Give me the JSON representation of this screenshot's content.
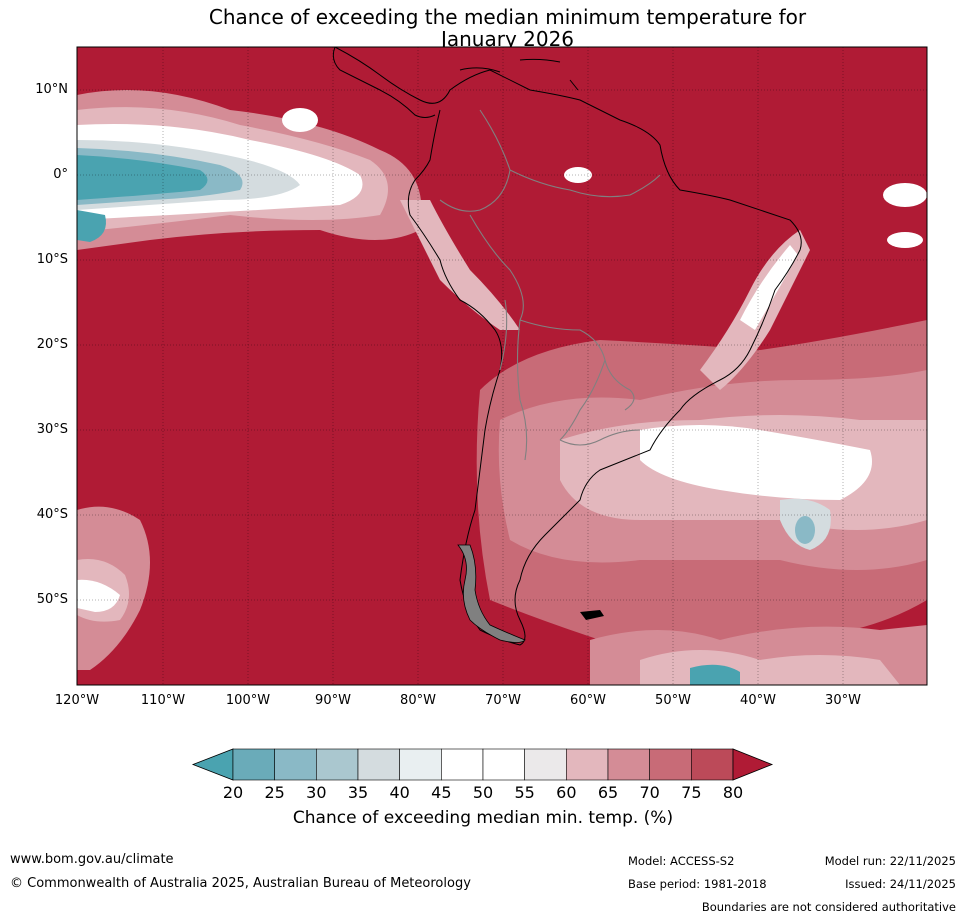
{
  "title": {
    "line1": "Chance of exceeding the median minimum temperature for",
    "line2": "January 2026"
  },
  "map": {
    "region": "South America",
    "lat_labels": [
      "10°N",
      "0°",
      "10°S",
      "20°S",
      "30°S",
      "40°S",
      "50°S"
    ],
    "lon_labels": [
      "120°W",
      "110°W",
      "100°W",
      "90°W",
      "80°W",
      "70°W",
      "60°W",
      "50°W",
      "40°W",
      "30°W"
    ],
    "background_color": "#b01b35",
    "land_outline_color": "#000000",
    "border_color": "#808080"
  },
  "colorbar": {
    "ticks": [
      "20",
      "25",
      "30",
      "35",
      "40",
      "45",
      "50",
      "55",
      "60",
      "65",
      "70",
      "75",
      "80"
    ],
    "colors": [
      "#4aa3b0",
      "#6aabb9",
      "#8ab9c6",
      "#aac7cf",
      "#d4dcdf",
      "#e9eff1",
      "#ffffff",
      "#ffffff",
      "#ebe9ea",
      "#e3b7bd",
      "#d48c96",
      "#c86b77",
      "#bc4a59",
      "#b01b35"
    ],
    "label": "Chance of exceeding median min. temp. (%)"
  },
  "footer": {
    "website": "www.bom.gov.au/climate",
    "copyright": "© Commonwealth of Australia 2025, Australian Bureau of Meteorology",
    "model": "Model: ACCESS-S2",
    "base_period": "Base period: 1981-2018",
    "model_run": "Model run: 22/11/2025",
    "issued": "Issued: 24/11/2025",
    "disclaimer": "Boundaries are not considered authoritative"
  }
}
